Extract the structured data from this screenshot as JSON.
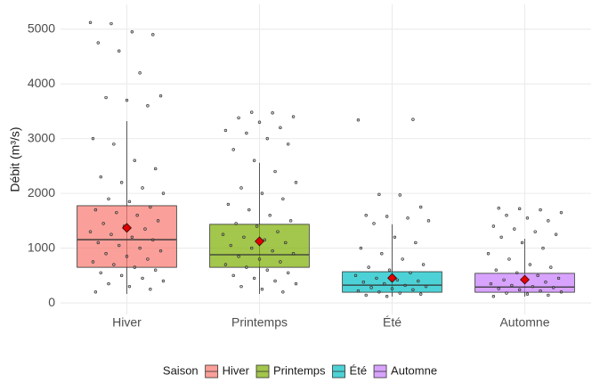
{
  "chart_data": {
    "type": "boxplot",
    "y_label": "Débit (m³/s)",
    "ylim": [
      -210,
      5450
    ],
    "yticks": [
      0,
      1000,
      2000,
      3000,
      4000,
      5000
    ],
    "grid": true,
    "legend_title": "Saison",
    "legend_position": "bottom",
    "boxes": [
      {
        "name": "Hiver",
        "color": "#F8766D",
        "min": 165,
        "q1": 650,
        "median": 1155,
        "q3": 1775,
        "max": 3320,
        "mean": 1370,
        "points": [
          5120,
          5100,
          4950,
          4900,
          4750,
          4600,
          4200,
          3780,
          3750,
          3700,
          3600,
          3000,
          2900,
          2600,
          2450,
          2300,
          2200,
          2100,
          2000,
          1900,
          1850,
          1750,
          1700,
          1650,
          1600,
          1500,
          1450,
          1400,
          1350,
          1300,
          1250,
          1200,
          1150,
          1100,
          1050,
          1000,
          950,
          900,
          850,
          800,
          750,
          700,
          650,
          600,
          550,
          500,
          450,
          400,
          350,
          300,
          250,
          200
        ]
      },
      {
        "name": "Printemps",
        "color": "#7CAE00",
        "min": 165,
        "q1": 650,
        "median": 880,
        "q3": 1435,
        "max": 2560,
        "mean": 1125,
        "points": [
          3480,
          3470,
          3400,
          3380,
          3300,
          3200,
          3150,
          3100,
          3000,
          2900,
          2800,
          2600,
          2400,
          2200,
          2100,
          2000,
          1900,
          1800,
          1700,
          1600,
          1500,
          1450,
          1400,
          1300,
          1250,
          1200,
          1150,
          1100,
          1050,
          1000,
          950,
          900,
          850,
          800,
          750,
          700,
          650,
          600,
          550,
          500,
          450,
          400,
          350,
          300,
          250,
          200
        ]
      },
      {
        "name": "Été",
        "color": "#00BFC4",
        "min": 115,
        "q1": 195,
        "median": 325,
        "q3": 570,
        "max": 1435,
        "mean": 455,
        "points": [
          3350,
          3340,
          1980,
          1970,
          1750,
          1600,
          1580,
          1550,
          1500,
          1450,
          1200,
          1100,
          1000,
          900,
          800,
          700,
          650,
          600,
          550,
          500,
          450,
          420,
          400,
          380,
          350,
          320,
          300,
          280,
          260,
          240,
          220,
          200,
          180,
          160,
          140,
          120
        ]
      },
      {
        "name": "Automne",
        "color": "#C77CFF",
        "min": 115,
        "q1": 195,
        "median": 290,
        "q3": 540,
        "max": 1170,
        "mean": 425,
        "points": [
          1730,
          1720,
          1700,
          1650,
          1600,
          1550,
          1500,
          1400,
          1350,
          1300,
          1250,
          1200,
          1100,
          1000,
          900,
          800,
          700,
          650,
          600,
          550,
          500,
          450,
          420,
          400,
          380,
          350,
          320,
          300,
          280,
          260,
          240,
          220,
          200,
          180,
          160,
          140,
          120
        ]
      }
    ]
  }
}
